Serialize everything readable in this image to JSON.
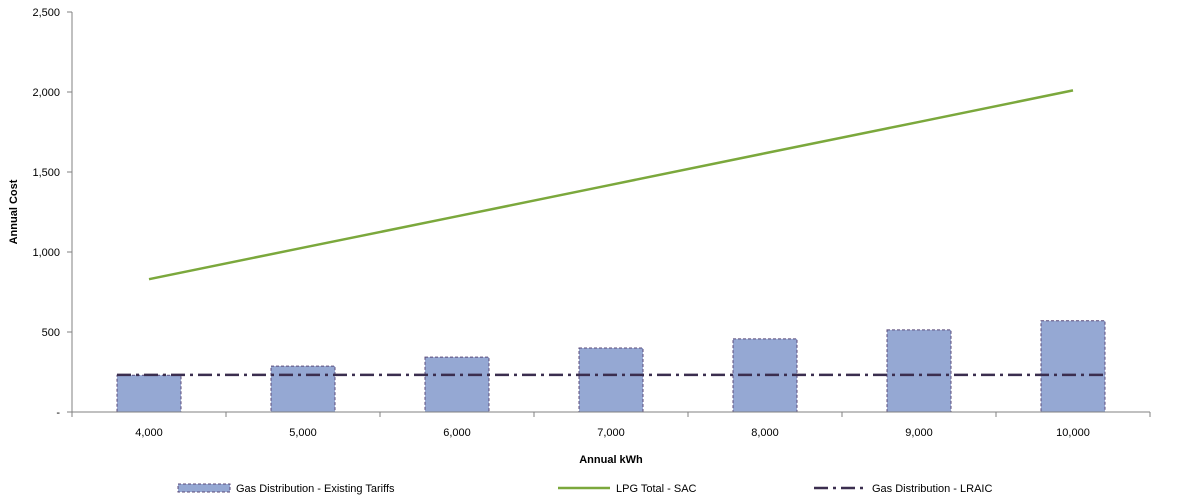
{
  "chart_data": {
    "type": "bar",
    "categories": [
      "4,000",
      "5,000",
      "6,000",
      "7,000",
      "8,000",
      "9,000",
      "10,000"
    ],
    "xlabel": "Annual kWh",
    "ylabel": "Annual Cost",
    "ylim": [
      0,
      2500
    ],
    "yticks": [
      0,
      500,
      1000,
      1500,
      2000,
      2500
    ],
    "ytick_labels": [
      "-",
      "500",
      "1,000",
      "1,500",
      "2,000",
      "2,500"
    ],
    "grid": false,
    "legend_position": "bottom",
    "series": [
      {
        "name": "Gas Distribution - Existing Tariffs",
        "type": "bar",
        "values": [
          230,
          287,
          343,
          400,
          457,
          513,
          570
        ],
        "color": "#95a8d3"
      },
      {
        "name": "LPG Total - SAC",
        "type": "line",
        "values": [
          830,
          1027,
          1223,
          1420,
          1617,
          1813,
          2010
        ],
        "color": "#7ba83c"
      },
      {
        "name": "Gas Distribution - LRAIC",
        "type": "line-dashdot",
        "values": [
          232,
          232,
          232,
          232,
          232,
          232,
          232
        ],
        "color": "#3b2e4f"
      }
    ]
  }
}
